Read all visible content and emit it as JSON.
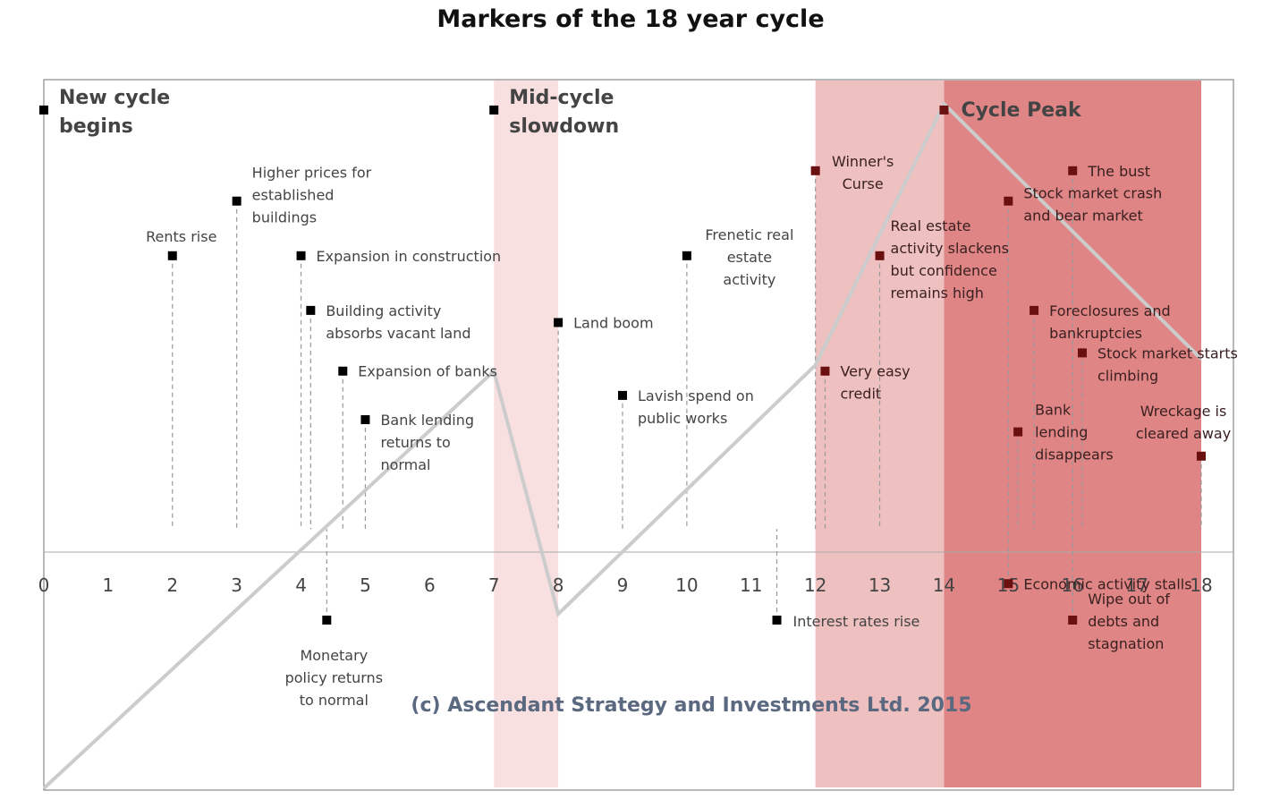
{
  "chart_data": {
    "type": "line",
    "title": "Markers of the 18 year cycle",
    "xlim": [
      0,
      18
    ],
    "ylim": [
      -4.3,
      7.4
    ],
    "x_ticks": [
      "0",
      "1",
      "2",
      "3",
      "4",
      "5",
      "6",
      "7",
      "8",
      "9",
      "10",
      "11",
      "12",
      "13",
      "14",
      "15",
      "16",
      "17",
      "18"
    ],
    "series": [
      {
        "x": [
          0,
          7,
          8,
          12,
          14,
          18
        ],
        "y": [
          -4.8,
          2.6,
          -1.4,
          2.7,
          7.0,
          2.8
        ],
        "color": "#cccccc"
      }
    ],
    "bands": [
      {
        "from": 7,
        "to": 8,
        "color": "#f9e0e0",
        "name": "Mid-cycle slowdown"
      },
      {
        "from": 12,
        "to": 14,
        "color": "#efc0c0",
        "name": "Winner's Curse"
      },
      {
        "from": 14,
        "to": 18,
        "color": "#e08585",
        "name": "Cycle Peak"
      }
    ],
    "markers": [
      {
        "x": 0,
        "y": 6.9,
        "label": [
          "New cycle",
          "begins"
        ],
        "style": "big",
        "color": "#000000"
      },
      {
        "x": 2,
        "y": 4.5,
        "label": [
          "Rents rise"
        ],
        "color": "#000000"
      },
      {
        "x": 3,
        "y": 5.4,
        "label": [
          "Higher prices for",
          "established",
          "buildings"
        ],
        "color": "#000000"
      },
      {
        "x": 4,
        "y": 4.5,
        "label": [
          "Expansion in construction"
        ],
        "color": "#000000"
      },
      {
        "x": 4.15,
        "y": 3.6,
        "label": [
          "Building activity",
          "absorbs vacant land"
        ],
        "color": "#000000"
      },
      {
        "x": 4.4,
        "y": -1.5,
        "label": [
          "Monetary",
          "policy returns",
          "to normal"
        ],
        "color": "#000000"
      },
      {
        "x": 4.65,
        "y": 2.6,
        "label": [
          "Expansion of banks"
        ],
        "color": "#000000"
      },
      {
        "x": 5,
        "y": 1.8,
        "label": [
          "Bank lending",
          "returns to",
          "normal"
        ],
        "color": "#000000"
      },
      {
        "x": 7,
        "y": 6.9,
        "label": [
          "Mid-cycle",
          "slowdown"
        ],
        "style": "big",
        "color": "#000000"
      },
      {
        "x": 8,
        "y": 3.4,
        "label": [
          "Land boom"
        ],
        "color": "#000000"
      },
      {
        "x": 9,
        "y": 2.2,
        "label": [
          "Lavish spend on",
          "public works"
        ],
        "color": "#000000"
      },
      {
        "x": 10,
        "y": 4.5,
        "label": [
          "Frenetic real",
          "estate",
          "activity"
        ],
        "color": "#000000"
      },
      {
        "x": 11.4,
        "y": -1.5,
        "label": [
          "Interest rates rise"
        ],
        "color": "#000000"
      },
      {
        "x": 12,
        "y": 5.9,
        "label": [
          "Winner's",
          "Curse"
        ],
        "color": "#6a1010"
      },
      {
        "x": 12.15,
        "y": 2.6,
        "label": [
          "Very easy",
          "credit"
        ],
        "color": "#6a1010"
      },
      {
        "x": 13,
        "y": 4.5,
        "label": [
          "Real estate",
          "activity slackens",
          "but confidence",
          "remains high"
        ],
        "color": "#6a1010"
      },
      {
        "x": 14,
        "y": 6.9,
        "label": [
          "Cycle Peak"
        ],
        "style": "big",
        "color": "#6a1010"
      },
      {
        "x": 15,
        "y": 5.4,
        "label": [
          "Stock market crash",
          "and bear market"
        ],
        "color": "#6a1010"
      },
      {
        "x": 15,
        "y": -0.9,
        "label": [
          "Economic activity stalls"
        ],
        "color": "#6a1010"
      },
      {
        "x": 15.15,
        "y": 1.6,
        "label": [
          "Bank",
          "lending",
          "disappears"
        ],
        "color": "#6a1010"
      },
      {
        "x": 15.4,
        "y": 3.6,
        "label": [
          "Foreclosures and",
          "bankruptcies"
        ],
        "color": "#6a1010"
      },
      {
        "x": 16,
        "y": 5.9,
        "label": [
          "The bust"
        ],
        "color": "#6a1010"
      },
      {
        "x": 16,
        "y": -1.5,
        "label": [
          "Wipe out of",
          "debts and",
          "stagnation"
        ],
        "color": "#6a1010"
      },
      {
        "x": 16.15,
        "y": 2.9,
        "label": [
          "Stock market starts",
          "climbing"
        ],
        "color": "#6a1010"
      },
      {
        "x": 18,
        "y": 1.2,
        "label": [
          "Wreckage is",
          "cleared away"
        ],
        "color": "#6a1010"
      }
    ],
    "annotation": "(c) Ascendant Strategy and Investments Ltd. 2015"
  }
}
